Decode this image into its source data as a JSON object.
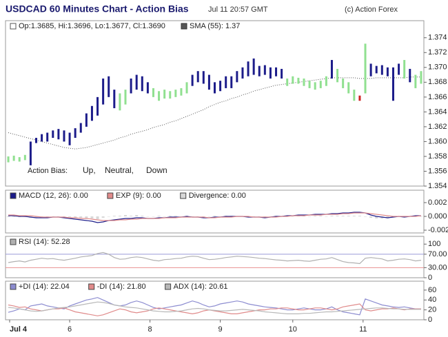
{
  "header": {
    "title": "USDCAD 60 Minutes Chart - Action Bias",
    "timestamp": "Jul 11 20:57 GMT",
    "copyright": "(c) Action Forex"
  },
  "chart_data": [
    {
      "type": "ohlc",
      "legend": "Op:1.3685, Hi:1.3696, Lo:1.3677, Cl:1.3690",
      "high": [
        1.358,
        1.3581,
        1.3579,
        1.3582,
        1.36,
        1.3605,
        1.361,
        1.3612,
        1.3615,
        1.3617,
        1.3615,
        1.3612,
        1.3618,
        1.3625,
        1.3638,
        1.3648,
        1.366,
        1.3685,
        1.3688,
        1.367,
        1.3665,
        1.367,
        1.3685,
        1.369,
        1.3688,
        1.368,
        1.3672,
        1.3668,
        1.367,
        1.3668,
        1.367,
        1.3672,
        1.368,
        1.369,
        1.3695,
        1.3695,
        1.369,
        1.368,
        1.3682,
        1.3688,
        1.3688,
        1.3695,
        1.37,
        1.3708,
        1.3712,
        1.3702,
        1.3703,
        1.37,
        1.37,
        1.3698,
        1.3685,
        1.3688,
        1.3686,
        1.3685,
        1.3682,
        1.368,
        1.3682,
        1.3688,
        1.371,
        1.3698,
        1.3685,
        1.368,
        1.367,
        1.3662,
        1.3732,
        1.3705,
        1.3702,
        1.3703,
        1.37,
        1.37,
        1.3705,
        1.371,
        1.3698,
        1.369,
        1.3695
      ],
      "low": [
        1.3572,
        1.3574,
        1.3573,
        1.3575,
        1.3568,
        1.3598,
        1.36,
        1.36,
        1.3605,
        1.3603,
        1.36,
        1.3595,
        1.3605,
        1.3612,
        1.362,
        1.3628,
        1.3635,
        1.365,
        1.366,
        1.3645,
        1.3642,
        1.365,
        1.3665,
        1.367,
        1.3668,
        1.3665,
        1.366,
        1.3655,
        1.3658,
        1.3658,
        1.366,
        1.3662,
        1.3665,
        1.3675,
        1.368,
        1.3678,
        1.367,
        1.3665,
        1.3668,
        1.3672,
        1.3672,
        1.368,
        1.3685,
        1.3688,
        1.369,
        1.3688,
        1.369,
        1.3685,
        1.3688,
        1.3685,
        1.3675,
        1.3678,
        1.3678,
        1.3675,
        1.3672,
        1.367,
        1.3672,
        1.3675,
        1.3685,
        1.368,
        1.3672,
        1.3665,
        1.3655,
        1.3655,
        1.3665,
        1.3688,
        1.3692,
        1.369,
        1.3688,
        1.3655,
        1.369,
        1.3685,
        1.368,
        1.3672,
        1.3678
      ],
      "bias": [
        1,
        1,
        1,
        1,
        0,
        0,
        0,
        0,
        0,
        0,
        0,
        0,
        0,
        0,
        0,
        0,
        0,
        0,
        0,
        0,
        1,
        1,
        0,
        0,
        0,
        0,
        1,
        1,
        1,
        1,
        1,
        1,
        1,
        0,
        0,
        0,
        0,
        0,
        0,
        0,
        0,
        0,
        0,
        0,
        0,
        0,
        0,
        0,
        0,
        0,
        1,
        1,
        1,
        1,
        1,
        1,
        1,
        1,
        0,
        1,
        1,
        1,
        1,
        2,
        1,
        0,
        0,
        0,
        0,
        0,
        0,
        1,
        0,
        1,
        1
      ],
      "bias_title": "Action Bias:",
      "series": [
        {
          "name": "Up,",
          "color": "#1c1c8a"
        },
        {
          "name": "Neutral,",
          "color": "#90e090"
        },
        {
          "name": "Down",
          "color": "#cc2020"
        }
      ],
      "sma": {
        "name": "SMA (55): 1.37",
        "color": "#555555",
        "values": [
          1.3612,
          1.361,
          1.3608,
          1.3606,
          1.3604,
          1.3602,
          1.36,
          1.3598,
          1.3596,
          1.3594,
          1.3592,
          1.3591,
          1.359,
          1.3591,
          1.3592,
          1.3594,
          1.3596,
          1.3598,
          1.36,
          1.3602,
          1.3605,
          1.3607,
          1.361,
          1.3612,
          1.3614,
          1.3616,
          1.3619,
          1.3621,
          1.3623,
          1.3626,
          1.3628,
          1.3631,
          1.3634,
          1.3637,
          1.364,
          1.3643,
          1.3647,
          1.365,
          1.3653,
          1.3655,
          1.3658,
          1.366,
          1.3663,
          1.3665,
          1.3668,
          1.367,
          1.3672,
          1.3674,
          1.3676,
          1.3677,
          1.3678,
          1.3679,
          1.368,
          1.3681,
          1.3682,
          1.3683,
          1.3684,
          1.3685,
          1.3686,
          1.3686,
          1.3686,
          1.3686,
          1.3686,
          1.3685,
          1.3685,
          1.3685,
          1.3686,
          1.3686,
          1.3686,
          1.3686,
          1.3686,
          1.3686,
          1.3687,
          1.3687,
          1.3687
        ]
      },
      "ylim": [
        1.354,
        1.3763
      ],
      "yticks": [
        1.354,
        1.356,
        1.358,
        {
          "value": 1.36,
          "label": "1.360"
        },
        1.362,
        1.364,
        1.366,
        1.368,
        {
          "value": 1.37,
          "label": "1.370"
        },
        1.372,
        1.374
      ]
    },
    {
      "type": "line",
      "series": [
        {
          "name": "MACD (12, 26): 0.00",
          "color": "#1c1c8a",
          "values": [
            0.0001,
            0.0001,
            0,
            0,
            -0.0001,
            -0.0002,
            -0.0002,
            -0.0002,
            -0.0001,
            -0.0001,
            -0.0002,
            -0.0003,
            -0.0004,
            -0.0005,
            -0.0006,
            -0.0007,
            -0.0009,
            -0.0008,
            -0.0006,
            -0.0005,
            -0.0004,
            -0.0003,
            -0.0003,
            -0.0002,
            -0.0002,
            -0.0003,
            -0.0003,
            -0.0002,
            -0.0002,
            -0.0001,
            -0.0001,
            -0.0001,
            0,
            -0.0001,
            -0.0001,
            -0.0002,
            -0.0002,
            -0.0001,
            -0.0001,
            0,
            0,
            0,
            0,
            -0.0001,
            -0.0001,
            -0.0001,
            -0.0002,
            -0.0001,
            0,
            0,
            0.0001,
            0.0001,
            0.0002,
            0.0002,
            0.0002,
            0.0003,
            0.0003,
            0.0003,
            0.0004,
            0.0004,
            0.0005,
            0.0005,
            0.0006,
            0.0006,
            0.0005,
            0.0002,
            0,
            -0.0001,
            -0.0002,
            -0.0001,
            0,
            -0.0001,
            0,
            0.0001,
            0.0001
          ]
        },
        {
          "name": "EXP (9): 0.00",
          "color": "#e08a8a",
          "values": [
            0.0002,
            0.0002,
            0.0001,
            0.0001,
            0.0001,
            0,
            -0.0001,
            -0.0001,
            -0.0001,
            -0.0001,
            -0.0001,
            -0.0002,
            -0.0002,
            -0.0003,
            -0.0003,
            -0.0004,
            -0.0005,
            -0.0006,
            -0.0006,
            -0.0006,
            -0.0005,
            -0.0005,
            -0.0004,
            -0.0004,
            -0.0003,
            -0.0003,
            -0.0003,
            -0.0003,
            -0.0002,
            -0.0002,
            -0.0002,
            -0.0001,
            -0.0001,
            -0.0001,
            -0.0001,
            -0.0001,
            -0.0002,
            -0.0002,
            -0.0001,
            -0.0001,
            -0.0001,
            0,
            0,
            0,
            -0.0001,
            -0.0001,
            -0.0001,
            -0.0001,
            -0.0001,
            0,
            0,
            0.0001,
            0.0001,
            0.0001,
            0.0002,
            0.0002,
            0.0002,
            0.0003,
            0.0003,
            0.0003,
            0.0004,
            0.0004,
            0.0005,
            0.0005,
            0.0005,
            0.0004,
            0.0003,
            0.0002,
            0.0001,
            0,
            0,
            0,
            0,
            0,
            0.0001
          ]
        },
        {
          "name": "Divergence: 0.00",
          "color": "#d8d8d8",
          "type": "bar",
          "values": [
            -0.0001,
            -0.0001,
            -0.0001,
            -0.0001,
            -0.0002,
            -0.0002,
            -0.0001,
            -0.0001,
            0,
            0,
            -0.0001,
            -0.0001,
            -0.0002,
            -0.0002,
            -0.0003,
            -0.0003,
            -0.0004,
            -0.0002,
            0,
            0.0001,
            0.0001,
            0.0002,
            0.0001,
            0.0002,
            0.0001,
            0,
            0,
            0.0001,
            0,
            0.0001,
            0.0001,
            0,
            0.0001,
            0,
            0,
            -0.0001,
            0,
            0.0001,
            0,
            0.0001,
            0.0001,
            0,
            0,
            -0.0001,
            0,
            0,
            -0.0001,
            0,
            0.0001,
            0,
            0.0001,
            0,
            0.0001,
            0.0001,
            0,
            0.0001,
            0.0001,
            0,
            0.0001,
            0.0001,
            0.0001,
            0.0001,
            0.0001,
            0.0001,
            0,
            -0.0002,
            -0.0003,
            -0.0003,
            -0.0003,
            -0.0001,
            0,
            -0.0001,
            0,
            0.0001,
            0
          ]
        }
      ],
      "ylim": [
        -0.0024,
        0.0038
      ],
      "yticks": [
        0.002,
        {
          "value": 0,
          "label": "0.000"
        },
        -0.002
      ]
    },
    {
      "type": "line",
      "series": [
        {
          "name": "RSI (14): 52.28",
          "color": "#b0b0b0",
          "values": [
            45,
            48,
            50,
            47,
            52,
            55,
            58,
            56,
            57,
            54,
            52,
            55,
            58,
            62,
            64,
            66,
            72,
            75,
            70,
            60,
            55,
            56,
            60,
            62,
            60,
            56,
            52,
            50,
            54,
            55,
            57,
            58,
            62,
            64,
            63,
            58,
            54,
            55,
            57,
            60,
            62,
            64,
            63,
            62,
            60,
            58,
            57,
            55,
            53,
            52,
            50,
            51,
            52,
            50,
            49,
            52,
            55,
            56,
            60,
            54,
            48,
            45,
            44,
            42,
            58,
            60,
            58,
            56,
            50,
            52,
            55,
            56,
            54,
            50,
            52
          ]
        }
      ],
      "ylim": [
        0,
        123
      ],
      "yticks": [
        100,
        {
          "value": 70,
          "label": "70.00",
          "color": "#9a9ad8"
        },
        {
          "value": 30,
          "label": "30.00",
          "color": "#e89090"
        },
        0
      ]
    },
    {
      "type": "line",
      "series": [
        {
          "name": "+DI (14): 22.04",
          "color": "#8c8cd0",
          "values": [
            15,
            18,
            22,
            20,
            28,
            30,
            32,
            28,
            26,
            24,
            22,
            28,
            32,
            36,
            40,
            42,
            45,
            40,
            35,
            30,
            28,
            30,
            35,
            38,
            35,
            30,
            25,
            22,
            24,
            26,
            28,
            30,
            34,
            38,
            35,
            30,
            26,
            28,
            32,
            34,
            36,
            38,
            36,
            32,
            30,
            28,
            26,
            25,
            24,
            22,
            20,
            20,
            22,
            24,
            22,
            20,
            20,
            22,
            26,
            20,
            16,
            14,
            12,
            10,
            42,
            38,
            34,
            30,
            28,
            26,
            25,
            26,
            24,
            22,
            22
          ]
        },
        {
          "name": "-DI (14): 21.80",
          "color": "#e08a8a",
          "values": [
            30,
            28,
            25,
            26,
            22,
            20,
            18,
            20,
            22,
            22,
            24,
            20,
            16,
            14,
            12,
            10,
            8,
            10,
            14,
            18,
            22,
            20,
            16,
            14,
            16,
            18,
            22,
            24,
            22,
            20,
            18,
            16,
            14,
            12,
            14,
            18,
            20,
            18,
            16,
            14,
            12,
            12,
            14,
            16,
            18,
            20,
            20,
            22,
            22,
            24,
            24,
            22,
            20,
            20,
            22,
            24,
            24,
            22,
            20,
            22,
            26,
            28,
            30,
            32,
            20,
            18,
            20,
            22,
            22,
            24,
            22,
            20,
            22,
            22,
            22
          ]
        },
        {
          "name": "ADX (14): 20.61",
          "color": "#b8b8b8",
          "values": [
            25,
            24,
            22,
            20,
            18,
            17,
            18,
            20,
            22,
            24,
            25,
            26,
            28,
            30,
            32,
            34,
            36,
            35,
            33,
            30,
            28,
            26,
            25,
            24,
            22,
            20,
            18,
            17,
            16,
            16,
            17,
            18,
            20,
            22,
            23,
            22,
            20,
            19,
            18,
            18,
            19,
            20,
            21,
            20,
            19,
            18,
            16,
            15,
            14,
            13,
            12,
            12,
            12,
            13,
            13,
            14,
            15,
            16,
            16,
            17,
            18,
            19,
            20,
            21,
            22,
            23,
            24,
            24,
            23,
            22,
            22,
            21,
            21,
            21,
            21
          ]
        }
      ],
      "ylim": [
        0,
        78
      ],
      "yticks": [
        60,
        40,
        20,
        0
      ],
      "xlim": [
        0,
        75
      ],
      "xticks": [
        {
          "value": 0.74,
          "label": "Jul 4"
        },
        {
          "value": 11.5,
          "label": "6"
        },
        {
          "value": 25.9,
          "label": "8"
        },
        {
          "value": 38.5,
          "label": "9"
        },
        {
          "value": 51.5,
          "label": "10"
        },
        {
          "value": 64.1,
          "label": "11"
        }
      ]
    }
  ]
}
